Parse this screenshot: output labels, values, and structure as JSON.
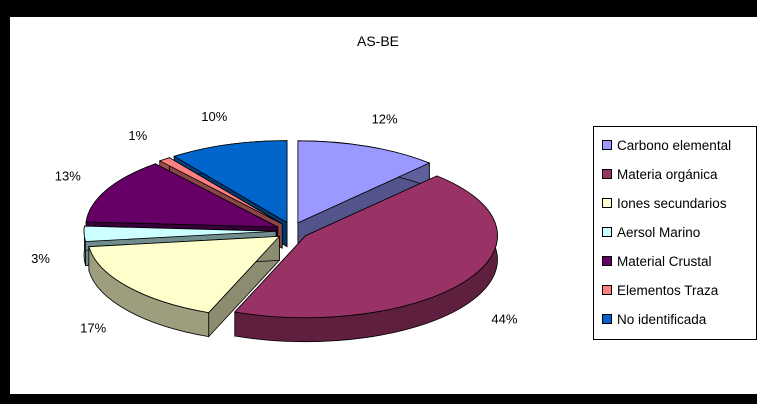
{
  "chart_data": {
    "type": "pie",
    "title": "AS-BE",
    "categories": [
      "Carbono elemental",
      "Materia orgánica",
      "Iones secundarios",
      "Aersol Marino",
      "Material Crustal",
      "Elementos Traza",
      "No identificada"
    ],
    "values": [
      12,
      44,
      17,
      3,
      13,
      1,
      10
    ],
    "labels": [
      "12%",
      "44%",
      "17%",
      "3%",
      "13%",
      "1%",
      "10%"
    ],
    "colors": [
      "#9999ff",
      "#993366",
      "#ffffcc",
      "#ccffff",
      "#660066",
      "#ff8080",
      "#0066cc"
    ],
    "exploded": true,
    "three_d": true,
    "legend_position": "right"
  }
}
